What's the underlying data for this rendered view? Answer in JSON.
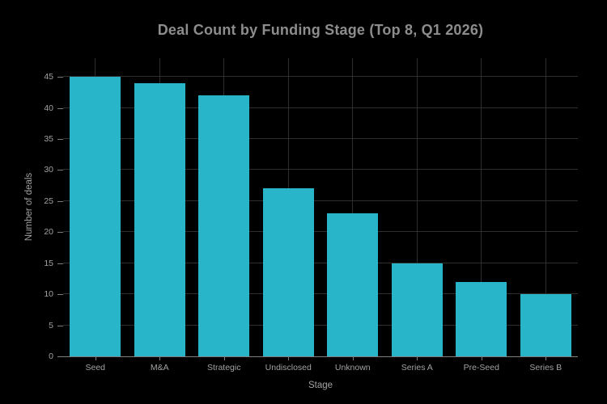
{
  "chart_data": {
    "type": "bar",
    "title": "Deal Count by Funding Stage (Top 8, Q1 2026)",
    "xlabel": "Stage",
    "ylabel": "Number of deals",
    "categories": [
      "Seed",
      "M&A",
      "Strategic",
      "Undisclosed",
      "Unknown",
      "Series A",
      "Pre-Seed",
      "Series B"
    ],
    "values": [
      45,
      44,
      42,
      27,
      23,
      15,
      12,
      10
    ],
    "yticks": [
      0,
      5,
      10,
      15,
      20,
      25,
      30,
      35,
      40,
      45
    ],
    "ylim": [
      0,
      48
    ],
    "grid": "on",
    "legend": "none",
    "colors": {
      "background": "#000000",
      "bar": "#29b5c9",
      "gridline": "#2e2e2e",
      "axis_line": "#7e7e7e",
      "title_text": "#8d8d8d",
      "tick_text": "#a2a2a2"
    }
  }
}
